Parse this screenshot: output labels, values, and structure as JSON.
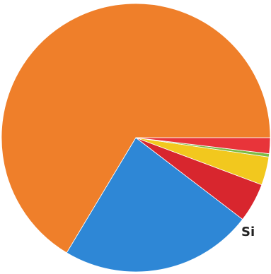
{
  "chart_data": {
    "type": "pie",
    "title": "",
    "slices": [
      {
        "label": "",
        "value": 66.4,
        "color": "#EF7F2A"
      },
      {
        "label": "",
        "value": 23.2,
        "color": "#2E87D6"
      },
      {
        "label": "",
        "value": 4.7,
        "color": "#D8262E"
      },
      {
        "label": "",
        "value": 3.4,
        "color": "#F2C81E"
      },
      {
        "label": "",
        "value": 0.4,
        "color": "#7DBB44"
      },
      {
        "label": "",
        "value": 1.9,
        "color": "#E8343A"
      }
    ]
  },
  "fragment_text": "Si"
}
